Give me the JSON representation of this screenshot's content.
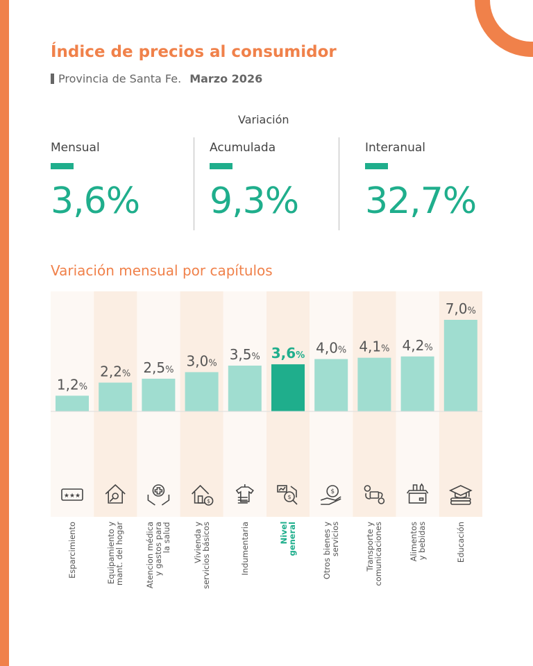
{
  "header": {
    "title": "Índice de precios al consumidor",
    "province": "Provincia de Santa Fe.",
    "period": "Marzo 2026"
  },
  "variation": {
    "heading": "Variación",
    "items": [
      {
        "label": "Mensual",
        "value": "3,6%"
      },
      {
        "label": "Acumulada",
        "value": "9,3%"
      },
      {
        "label": "Interanual",
        "value": "32,7%"
      }
    ]
  },
  "colors": {
    "accent": "#f0814a",
    "bar": "#a0ddd0",
    "highlight": "#1fae8c",
    "col_light": "#fdf8f4",
    "col_dark": "#fbeee3"
  },
  "chart_data": {
    "type": "bar",
    "title": "Variación mensual por capítulos",
    "categories": [
      "Esparcimiento",
      "Equipamiento y\nmant. del hogar",
      "Atencion médica\ny gastos para\nla salud",
      "Vivienda y\nservicios básicos",
      "Indumentaria",
      "Nivel\ngeneral",
      "Otros bienes y\nservicios",
      "Transporte y\ncomunicaciones",
      "Alimentos\ny bebidas",
      "Educación"
    ],
    "values": [
      1.2,
      2.2,
      2.5,
      3.0,
      3.5,
      3.6,
      4.0,
      4.1,
      4.2,
      7.0
    ],
    "value_labels": [
      "1,2",
      "2,2",
      "2,5",
      "3,0",
      "3,5",
      "3,6",
      "4,0",
      "4,1",
      "4,2",
      "7,0"
    ],
    "unit": "%",
    "highlight": "Nivel\ngeneral",
    "icons": [
      "ticket-icon",
      "house-wrench-icon",
      "hands-medical-cross-icon",
      "house-dollar-icon",
      "clothes-icon",
      "chart-magnifier-dollar-icon",
      "hand-dollar-icon",
      "route-bus-icon",
      "grocery-box-icon",
      "graduation-books-icon"
    ],
    "ylim": [
      0,
      7.0
    ],
    "grid": false
  }
}
